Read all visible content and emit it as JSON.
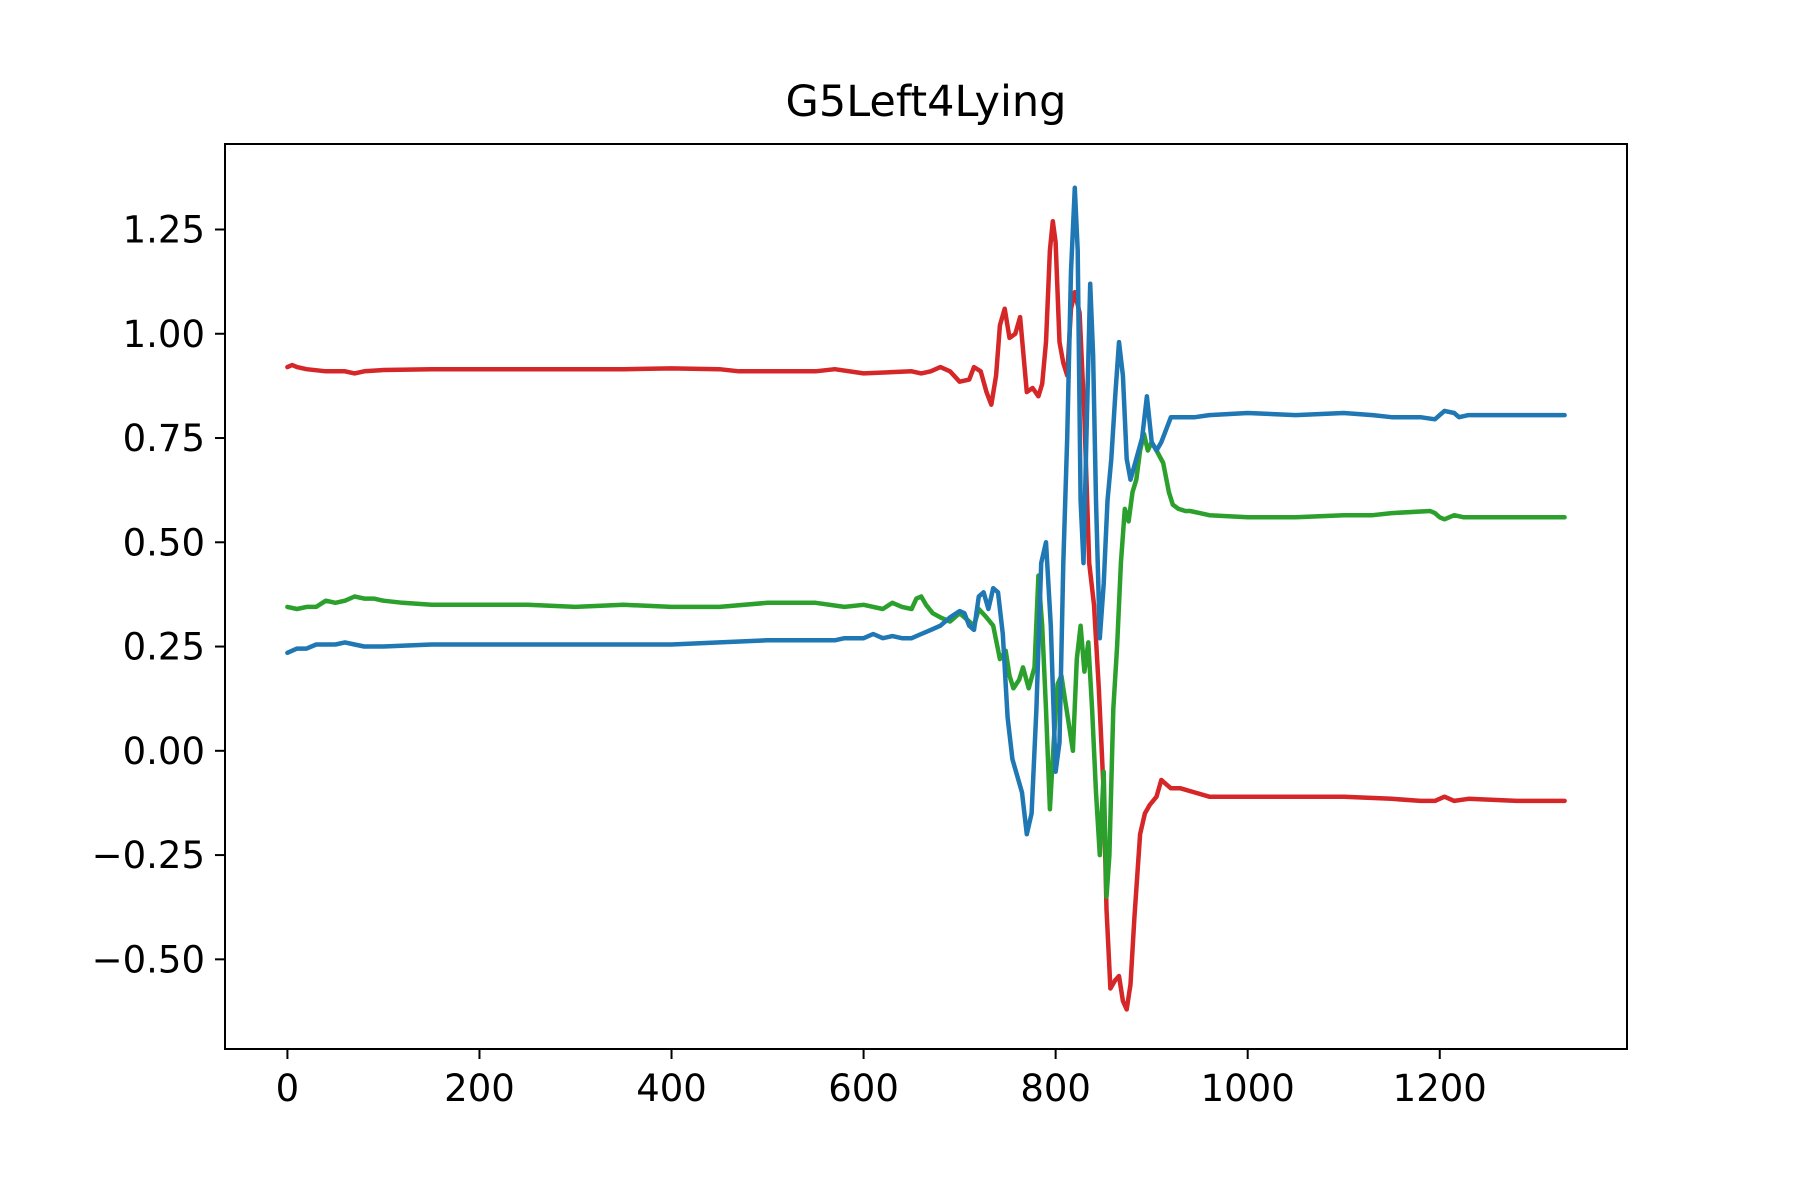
{
  "chart_data": {
    "type": "line",
    "title": "G5Left4Lying",
    "xlabel": "",
    "ylabel": "",
    "xlim": [
      -65,
      1395
    ],
    "ylim": [
      -0.715,
      1.455
    ],
    "xticks": [
      0,
      200,
      400,
      600,
      800,
      1000,
      1200
    ],
    "xtick_labels": [
      "0",
      "200",
      "400",
      "600",
      "800",
      "1000",
      "1200"
    ],
    "yticks": [
      -0.5,
      -0.25,
      0.0,
      0.25,
      0.5,
      0.75,
      1.0,
      1.25
    ],
    "ytick_labels": [
      "−0.50",
      "−0.25",
      "0.00",
      "0.25",
      "0.50",
      "0.75",
      "1.00",
      "1.25"
    ],
    "grid": false,
    "legend": "none",
    "series": [
      {
        "color": "#d62728",
        "points": [
          [
            0,
            0.92
          ],
          [
            5,
            0.925
          ],
          [
            10,
            0.92
          ],
          [
            20,
            0.915
          ],
          [
            40,
            0.91
          ],
          [
            60,
            0.91
          ],
          [
            70,
            0.905
          ],
          [
            80,
            0.91
          ],
          [
            100,
            0.913
          ],
          [
            150,
            0.915
          ],
          [
            200,
            0.915
          ],
          [
            250,
            0.915
          ],
          [
            300,
            0.915
          ],
          [
            350,
            0.915
          ],
          [
            400,
            0.917
          ],
          [
            450,
            0.915
          ],
          [
            470,
            0.91
          ],
          [
            500,
            0.91
          ],
          [
            550,
            0.91
          ],
          [
            570,
            0.915
          ],
          [
            600,
            0.905
          ],
          [
            650,
            0.91
          ],
          [
            660,
            0.905
          ],
          [
            670,
            0.91
          ],
          [
            680,
            0.92
          ],
          [
            690,
            0.91
          ],
          [
            700,
            0.885
          ],
          [
            710,
            0.89
          ],
          [
            715,
            0.92
          ],
          [
            722,
            0.91
          ],
          [
            728,
            0.86
          ],
          [
            733,
            0.83
          ],
          [
            738,
            0.9
          ],
          [
            742,
            1.02
          ],
          [
            747,
            1.06
          ],
          [
            752,
            0.99
          ],
          [
            758,
            1.0
          ],
          [
            763,
            1.04
          ],
          [
            770,
            0.86
          ],
          [
            776,
            0.87
          ],
          [
            782,
            0.85
          ],
          [
            786,
            0.88
          ],
          [
            790,
            0.98
          ],
          [
            794,
            1.2
          ],
          [
            797,
            1.27
          ],
          [
            800,
            1.22
          ],
          [
            804,
            0.98
          ],
          [
            808,
            0.93
          ],
          [
            812,
            0.9
          ],
          [
            816,
            1.06
          ],
          [
            820,
            1.1
          ],
          [
            825,
            1.05
          ],
          [
            830,
            0.8
          ],
          [
            835,
            0.45
          ],
          [
            840,
            0.35
          ],
          [
            845,
            0.15
          ],
          [
            850,
            -0.1
          ],
          [
            853,
            -0.38
          ],
          [
            857,
            -0.57
          ],
          [
            862,
            -0.55
          ],
          [
            866,
            -0.54
          ],
          [
            870,
            -0.6
          ],
          [
            874,
            -0.62
          ],
          [
            878,
            -0.56
          ],
          [
            882,
            -0.4
          ],
          [
            888,
            -0.2
          ],
          [
            893,
            -0.15
          ],
          [
            898,
            -0.13
          ],
          [
            905,
            -0.11
          ],
          [
            910,
            -0.07
          ],
          [
            915,
            -0.08
          ],
          [
            920,
            -0.09
          ],
          [
            930,
            -0.09
          ],
          [
            945,
            -0.1
          ],
          [
            960,
            -0.11
          ],
          [
            1000,
            -0.11
          ],
          [
            1050,
            -0.11
          ],
          [
            1100,
            -0.11
          ],
          [
            1150,
            -0.115
          ],
          [
            1180,
            -0.12
          ],
          [
            1195,
            -0.12
          ],
          [
            1205,
            -0.11
          ],
          [
            1215,
            -0.12
          ],
          [
            1230,
            -0.115
          ],
          [
            1280,
            -0.12
          ],
          [
            1320,
            -0.12
          ],
          [
            1330,
            -0.12
          ]
        ]
      },
      {
        "color": "#2ca02c",
        "points": [
          [
            0,
            0.345
          ],
          [
            10,
            0.34
          ],
          [
            20,
            0.345
          ],
          [
            30,
            0.345
          ],
          [
            40,
            0.36
          ],
          [
            50,
            0.355
          ],
          [
            60,
            0.36
          ],
          [
            70,
            0.37
          ],
          [
            80,
            0.365
          ],
          [
            90,
            0.365
          ],
          [
            100,
            0.36
          ],
          [
            120,
            0.355
          ],
          [
            150,
            0.35
          ],
          [
            200,
            0.35
          ],
          [
            250,
            0.35
          ],
          [
            300,
            0.345
          ],
          [
            350,
            0.35
          ],
          [
            400,
            0.345
          ],
          [
            450,
            0.345
          ],
          [
            500,
            0.355
          ],
          [
            550,
            0.355
          ],
          [
            580,
            0.345
          ],
          [
            600,
            0.35
          ],
          [
            620,
            0.34
          ],
          [
            630,
            0.355
          ],
          [
            640,
            0.345
          ],
          [
            650,
            0.34
          ],
          [
            655,
            0.365
          ],
          [
            660,
            0.37
          ],
          [
            665,
            0.35
          ],
          [
            672,
            0.33
          ],
          [
            680,
            0.32
          ],
          [
            690,
            0.31
          ],
          [
            700,
            0.33
          ],
          [
            710,
            0.31
          ],
          [
            715,
            0.3
          ],
          [
            720,
            0.34
          ],
          [
            728,
            0.32
          ],
          [
            735,
            0.3
          ],
          [
            742,
            0.22
          ],
          [
            748,
            0.24
          ],
          [
            752,
            0.18
          ],
          [
            756,
            0.15
          ],
          [
            762,
            0.17
          ],
          [
            766,
            0.2
          ],
          [
            772,
            0.15
          ],
          [
            778,
            0.2
          ],
          [
            782,
            0.42
          ],
          [
            786,
            0.3
          ],
          [
            790,
            0.1
          ],
          [
            794,
            -0.14
          ],
          [
            798,
            0.02
          ],
          [
            802,
            0.16
          ],
          [
            806,
            0.18
          ],
          [
            810,
            0.12
          ],
          [
            814,
            0.06
          ],
          [
            818,
            0.0
          ],
          [
            822,
            0.22
          ],
          [
            826,
            0.3
          ],
          [
            830,
            0.19
          ],
          [
            834,
            0.26
          ],
          [
            838,
            0.1
          ],
          [
            842,
            -0.1
          ],
          [
            846,
            -0.25
          ],
          [
            850,
            -0.05
          ],
          [
            853,
            -0.35
          ],
          [
            856,
            -0.25
          ],
          [
            860,
            0.1
          ],
          [
            864,
            0.25
          ],
          [
            868,
            0.45
          ],
          [
            872,
            0.58
          ],
          [
            876,
            0.55
          ],
          [
            880,
            0.62
          ],
          [
            884,
            0.65
          ],
          [
            888,
            0.72
          ],
          [
            892,
            0.76
          ],
          [
            896,
            0.72
          ],
          [
            900,
            0.74
          ],
          [
            905,
            0.72
          ],
          [
            912,
            0.69
          ],
          [
            918,
            0.62
          ],
          [
            922,
            0.59
          ],
          [
            928,
            0.58
          ],
          [
            935,
            0.575
          ],
          [
            940,
            0.575
          ],
          [
            950,
            0.57
          ],
          [
            960,
            0.565
          ],
          [
            1000,
            0.56
          ],
          [
            1050,
            0.56
          ],
          [
            1100,
            0.565
          ],
          [
            1130,
            0.565
          ],
          [
            1150,
            0.57
          ],
          [
            1190,
            0.575
          ],
          [
            1195,
            0.57
          ],
          [
            1200,
            0.56
          ],
          [
            1205,
            0.555
          ],
          [
            1215,
            0.565
          ],
          [
            1225,
            0.56
          ],
          [
            1260,
            0.56
          ],
          [
            1300,
            0.56
          ],
          [
            1330,
            0.56
          ]
        ]
      },
      {
        "color": "#1f77b4",
        "points": [
          [
            0,
            0.235
          ],
          [
            10,
            0.245
          ],
          [
            20,
            0.245
          ],
          [
            30,
            0.255
          ],
          [
            40,
            0.255
          ],
          [
            50,
            0.255
          ],
          [
            60,
            0.26
          ],
          [
            70,
            0.255
          ],
          [
            80,
            0.25
          ],
          [
            100,
            0.25
          ],
          [
            150,
            0.255
          ],
          [
            200,
            0.255
          ],
          [
            250,
            0.255
          ],
          [
            300,
            0.255
          ],
          [
            350,
            0.255
          ],
          [
            400,
            0.255
          ],
          [
            450,
            0.26
          ],
          [
            500,
            0.265
          ],
          [
            550,
            0.265
          ],
          [
            570,
            0.265
          ],
          [
            580,
            0.27
          ],
          [
            600,
            0.27
          ],
          [
            610,
            0.28
          ],
          [
            620,
            0.27
          ],
          [
            630,
            0.275
          ],
          [
            640,
            0.27
          ],
          [
            650,
            0.27
          ],
          [
            660,
            0.28
          ],
          [
            670,
            0.29
          ],
          [
            680,
            0.3
          ],
          [
            690,
            0.32
          ],
          [
            700,
            0.335
          ],
          [
            705,
            0.33
          ],
          [
            710,
            0.3
          ],
          [
            715,
            0.29
          ],
          [
            720,
            0.37
          ],
          [
            725,
            0.38
          ],
          [
            730,
            0.34
          ],
          [
            735,
            0.39
          ],
          [
            740,
            0.38
          ],
          [
            745,
            0.28
          ],
          [
            750,
            0.08
          ],
          [
            755,
            -0.02
          ],
          [
            760,
            -0.06
          ],
          [
            765,
            -0.1
          ],
          [
            770,
            -0.2
          ],
          [
            775,
            -0.15
          ],
          [
            780,
            0.1
          ],
          [
            785,
            0.45
          ],
          [
            790,
            0.5
          ],
          [
            795,
            0.3
          ],
          [
            800,
            -0.05
          ],
          [
            804,
            0.02
          ],
          [
            808,
            0.45
          ],
          [
            812,
            0.75
          ],
          [
            816,
            1.15
          ],
          [
            820,
            1.35
          ],
          [
            823,
            1.2
          ],
          [
            826,
            0.6
          ],
          [
            829,
            0.45
          ],
          [
            832,
            0.75
          ],
          [
            836,
            1.12
          ],
          [
            839,
            0.95
          ],
          [
            842,
            0.6
          ],
          [
            846,
            0.27
          ],
          [
            850,
            0.4
          ],
          [
            854,
            0.6
          ],
          [
            858,
            0.7
          ],
          [
            862,
            0.85
          ],
          [
            866,
            0.98
          ],
          [
            870,
            0.9
          ],
          [
            874,
            0.7
          ],
          [
            878,
            0.65
          ],
          [
            884,
            0.7
          ],
          [
            890,
            0.75
          ],
          [
            895,
            0.85
          ],
          [
            900,
            0.74
          ],
          [
            905,
            0.72
          ],
          [
            910,
            0.74
          ],
          [
            915,
            0.77
          ],
          [
            920,
            0.8
          ],
          [
            930,
            0.8
          ],
          [
            945,
            0.8
          ],
          [
            960,
            0.805
          ],
          [
            1000,
            0.81
          ],
          [
            1050,
            0.805
          ],
          [
            1100,
            0.81
          ],
          [
            1130,
            0.805
          ],
          [
            1150,
            0.8
          ],
          [
            1180,
            0.8
          ],
          [
            1195,
            0.795
          ],
          [
            1200,
            0.805
          ],
          [
            1205,
            0.815
          ],
          [
            1215,
            0.81
          ],
          [
            1220,
            0.8
          ],
          [
            1230,
            0.805
          ],
          [
            1280,
            0.805
          ],
          [
            1330,
            0.805
          ]
        ]
      }
    ]
  }
}
